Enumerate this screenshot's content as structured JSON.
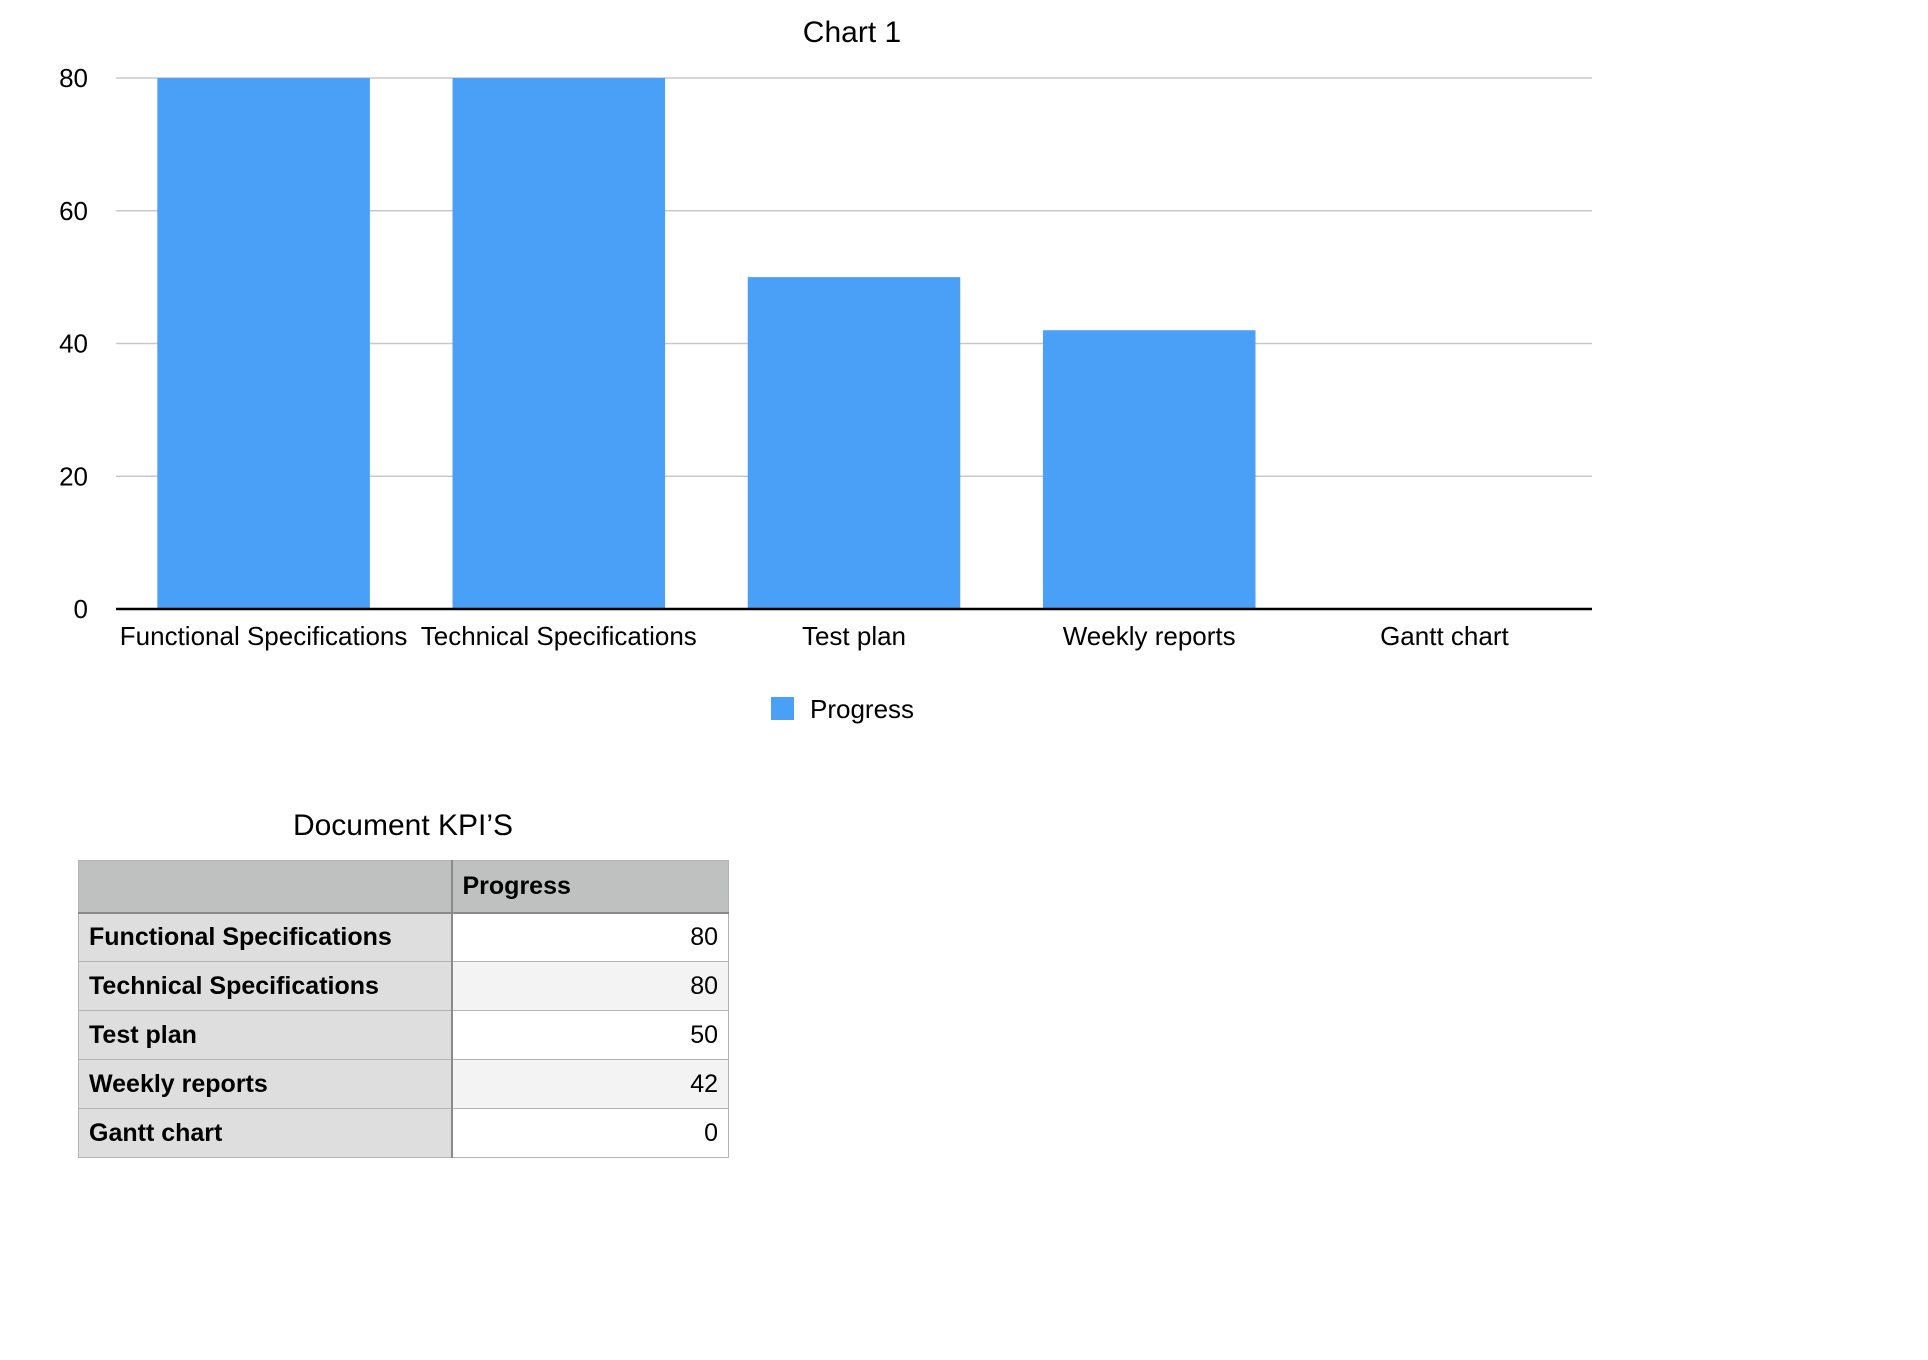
{
  "chart_data": {
    "type": "bar",
    "title": "Chart 1",
    "categories": [
      "Functional Specifications",
      "Technical Specifications",
      "Test plan",
      "Weekly reports",
      "Gantt chart"
    ],
    "series": [
      {
        "name": "Progress",
        "values": [
          80,
          80,
          50,
          42,
          0
        ],
        "color": "#4aa0f7"
      }
    ],
    "xlabel": "",
    "ylabel": "",
    "ylim": [
      0,
      80
    ],
    "yticks": [
      0,
      20,
      40,
      60,
      80
    ],
    "grid": true,
    "legend_position": "bottom-center"
  },
  "table": {
    "title": "Document KPI’S",
    "header": {
      "corner": "",
      "column": "Progress"
    },
    "rows": [
      {
        "label": "Functional Specifications",
        "value": "80"
      },
      {
        "label": "Technical Specifications",
        "value": "80"
      },
      {
        "label": "Test plan",
        "value": "50"
      },
      {
        "label": "Weekly reports",
        "value": "42"
      },
      {
        "label": "Gantt chart",
        "value": "0"
      }
    ]
  }
}
